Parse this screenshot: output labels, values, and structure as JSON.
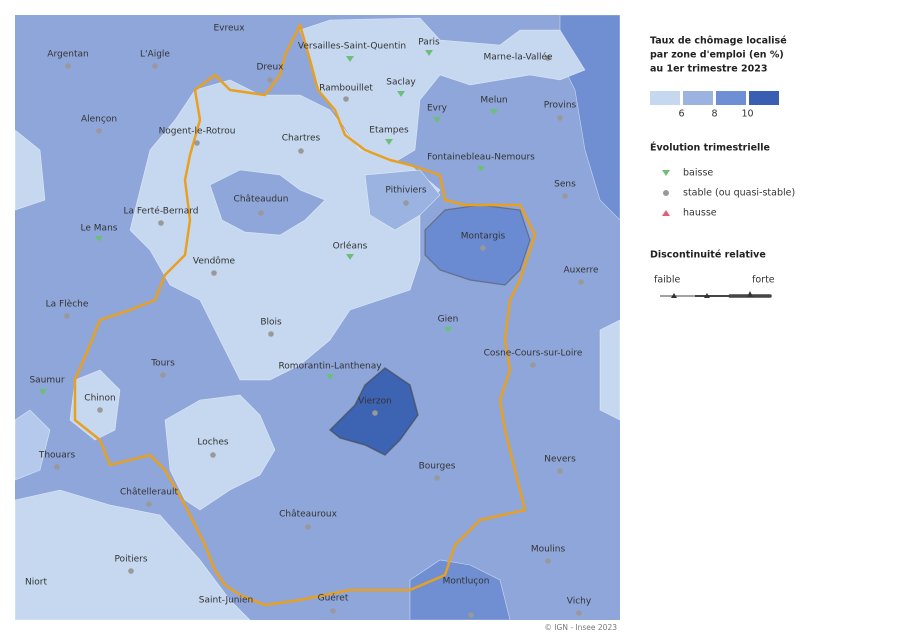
{
  "map": {
    "places": [
      "Evreux",
      "Paris",
      "Versailles-Saint-Quentin",
      "Marne-la-Vallée",
      "Argentan",
      "L'Aigle",
      "Dreux",
      "Rambouillet",
      "Saclay",
      "Evry",
      "Melun",
      "Provins",
      "Alençon",
      "Nogent-le-Rotrou",
      "Chartres",
      "Etampes",
      "Fontainebleau-Nemours",
      "Sens",
      "Pithiviers",
      "Châteaudun",
      "La Ferté-Bernard",
      "Le Mans",
      "Montargis",
      "Orléans",
      "Auxerre",
      "Vendôme",
      "La Flèche",
      "Blois",
      "Gien",
      "Cosne-Cours-sur-Loire",
      "Tours",
      "Romorantin-Lanthenay",
      "Saumur",
      "Chinon",
      "Vierzon",
      "Loches",
      "Thouars",
      "Nevers",
      "Bourges",
      "Châtellerault",
      "Châteauroux",
      "Poitiers",
      "Moulins",
      "Niort",
      "Montluçon",
      "Saint-Junien",
      "Guéret",
      "Vichy"
    ],
    "credit": "© IGN - Insee 2023"
  },
  "legend": {
    "title": [
      "Taux de chômage localisé",
      "par zone d'emploi (en %)",
      "au 1er trimestre 2023"
    ],
    "scale_ticks": [
      6,
      8,
      10
    ],
    "trend_title": "Évolution trimestrielle",
    "trend_items": [
      "baisse",
      "stable (ou quasi-stable)",
      "hausse"
    ],
    "discontinuity_title": "Discontinuité relative",
    "discontinuity_low": "faible",
    "discontinuity_high": "forte"
  }
}
